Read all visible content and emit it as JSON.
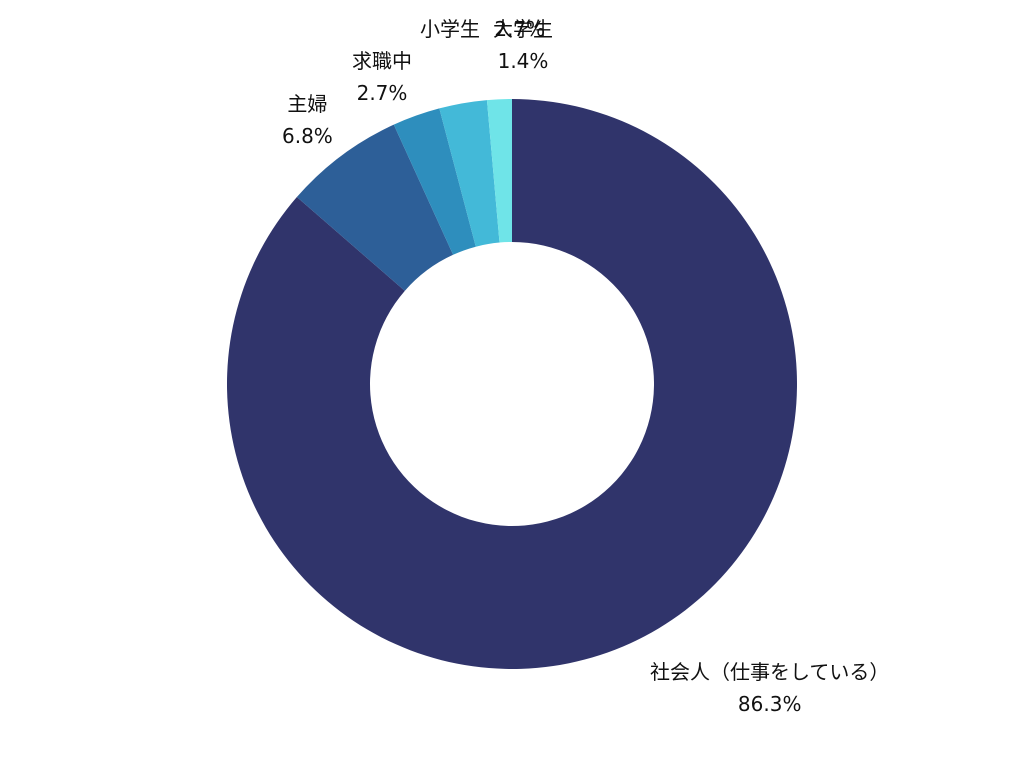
{
  "chart_data": {
    "type": "pie",
    "donut": true,
    "title": "",
    "series": [
      {
        "categories": [
          "社会人（仕事をしている）",
          "主婦",
          "求職中",
          "小学生",
          "大学生"
        ],
        "values": [
          86.3,
          6.8,
          2.7,
          2.7,
          1.4
        ],
        "value_labels": [
          "86.3%",
          "6.8%",
          "2.7%",
          "2.7%",
          "1.4%"
        ],
        "colors": [
          "#30346b",
          "#2d5f98",
          "#2e8ebd",
          "#43b9d8",
          "#6fe4e8"
        ]
      }
    ],
    "start_angle": "12 o'clock",
    "direction": "clockwise",
    "legend": "none"
  }
}
